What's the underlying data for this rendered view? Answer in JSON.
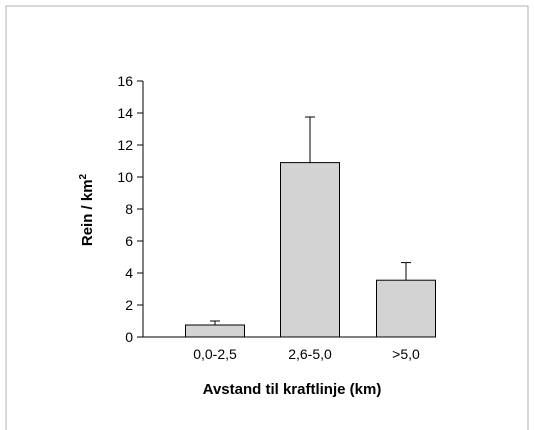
{
  "chart_data": {
    "type": "bar",
    "categories": [
      "0,0-2,5",
      "2,6-5,0",
      ">5,0"
    ],
    "values": [
      0.75,
      10.9,
      3.55
    ],
    "error_upper": [
      1.0,
      13.75,
      4.65
    ],
    "ylim": [
      0,
      16
    ],
    "yticks": [
      0,
      2,
      4,
      6,
      8,
      10,
      12,
      14,
      16
    ],
    "ytick_labels": [
      "0",
      "2",
      "4",
      "6",
      "8",
      "10",
      "12",
      "14",
      "16"
    ],
    "xlabel": "Avstand til kraftlinje (km)",
    "ylabel": "Rein / km",
    "ylabel_superscript": "2",
    "bar_color": "#d3d3d3",
    "grid": false
  }
}
